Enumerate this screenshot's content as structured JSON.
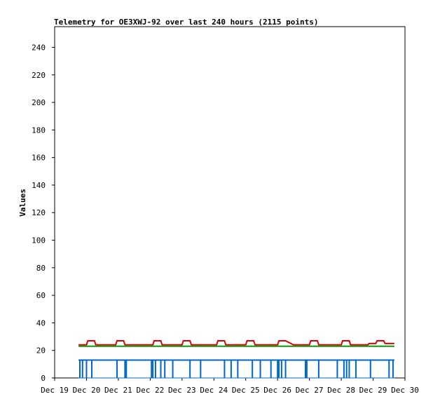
{
  "chart_data": {
    "type": "line",
    "title": "Telemetry for OE3XWJ-92 over last 240 hours (2115 points)",
    "xlabel": "",
    "ylabel": "Values",
    "x_range": [
      "2024-12-19T00:00",
      "2024-12-30T00:00"
    ],
    "x_ticks": [
      "Dec 19",
      "Dec 20",
      "Dec 21",
      "Dec 22",
      "Dec 23",
      "Dec 24",
      "Dec 25",
      "Dec 26",
      "Dec 27",
      "Dec 28",
      "Dec 29",
      "Dec 30"
    ],
    "ylim": [
      0,
      255
    ],
    "y_ticks": [
      0,
      20,
      40,
      60,
      80,
      100,
      120,
      140,
      160,
      180,
      200,
      220,
      240
    ],
    "grid": false,
    "legend": "none",
    "series": [
      {
        "color": "#e00000",
        "points": [
          [
            "2024-12-19T18:00",
            24
          ],
          [
            "2024-12-20T00:00",
            24
          ],
          [
            "2024-12-20T01:00",
            27
          ],
          [
            "2024-12-20T06:00",
            27
          ],
          [
            "2024-12-20T07:00",
            24
          ],
          [
            "2024-12-20T22:00",
            24
          ],
          [
            "2024-12-20T23:00",
            27
          ],
          [
            "2024-12-21T04:00",
            27
          ],
          [
            "2024-12-21T05:00",
            24
          ],
          [
            "2024-12-22T02:00",
            24
          ],
          [
            "2024-12-22T03:00",
            27
          ],
          [
            "2024-12-22T08:00",
            27
          ],
          [
            "2024-12-22T09:00",
            24
          ],
          [
            "2024-12-23T00:00",
            24
          ],
          [
            "2024-12-23T01:00",
            27
          ],
          [
            "2024-12-23T06:00",
            27
          ],
          [
            "2024-12-23T07:00",
            24
          ],
          [
            "2024-12-24T02:00",
            24
          ],
          [
            "2024-12-24T03:00",
            27
          ],
          [
            "2024-12-24T08:00",
            27
          ],
          [
            "2024-12-24T09:00",
            24
          ],
          [
            "2024-12-25T00:00",
            24
          ],
          [
            "2024-12-25T01:00",
            27
          ],
          [
            "2024-12-25T06:00",
            27
          ],
          [
            "2024-12-25T07:00",
            24
          ],
          [
            "2024-12-26T00:00",
            24
          ],
          [
            "2024-12-26T01:00",
            27
          ],
          [
            "2024-12-26T06:00",
            27
          ],
          [
            "2024-12-26T12:00",
            24
          ],
          [
            "2024-12-27T00:00",
            24
          ],
          [
            "2024-12-27T01:00",
            27
          ],
          [
            "2024-12-27T06:00",
            27
          ],
          [
            "2024-12-27T07:00",
            24
          ],
          [
            "2024-12-28T00:00",
            24
          ],
          [
            "2024-12-28T01:00",
            27
          ],
          [
            "2024-12-28T06:00",
            27
          ],
          [
            "2024-12-28T07:00",
            24
          ],
          [
            "2024-12-28T20:00",
            24
          ],
          [
            "2024-12-28T21:00",
            25
          ],
          [
            "2024-12-29T02:00",
            25
          ],
          [
            "2024-12-29T03:00",
            27
          ],
          [
            "2024-12-29T08:00",
            27
          ],
          [
            "2024-12-29T09:00",
            25
          ],
          [
            "2024-12-29T16:00",
            25
          ]
        ]
      },
      {
        "color": "#00a000",
        "points": [
          [
            "2024-12-19T18:00",
            23
          ],
          [
            "2024-12-29T16:00",
            23
          ]
        ]
      },
      {
        "color": "#0066cc",
        "baseline": 13,
        "drops_to": 0,
        "drops": [
          "2024-12-19T19:00",
          "2024-12-19T21:00",
          "2024-12-20T00:00",
          "2024-12-20T04:00",
          "2024-12-20T23:00",
          "2024-12-21T05:00",
          "2024-12-21T06:00",
          "2024-12-22T01:00",
          "2024-12-22T02:00",
          "2024-12-22T04:00",
          "2024-12-22T08:00",
          "2024-12-22T11:00",
          "2024-12-22T17:00",
          "2024-12-23T06:00",
          "2024-12-23T14:00",
          "2024-12-24T08:00",
          "2024-12-24T13:00",
          "2024-12-24T18:00",
          "2024-12-25T05:00",
          "2024-12-25T11:00",
          "2024-12-25T19:00",
          "2024-12-26T00:00",
          "2024-12-26T01:00",
          "2024-12-26T03:00",
          "2024-12-26T06:00",
          "2024-12-26T21:00",
          "2024-12-26T22:00",
          "2024-12-27T07:00",
          "2024-12-27T21:00",
          "2024-12-28T02:00",
          "2024-12-28T04:00",
          "2024-12-28T06:00",
          "2024-12-28T11:00",
          "2024-12-28T22:00",
          "2024-12-29T12:00",
          "2024-12-29T15:00"
        ],
        "range": [
          "2024-12-19T18:00",
          "2024-12-29T16:00"
        ]
      }
    ]
  }
}
